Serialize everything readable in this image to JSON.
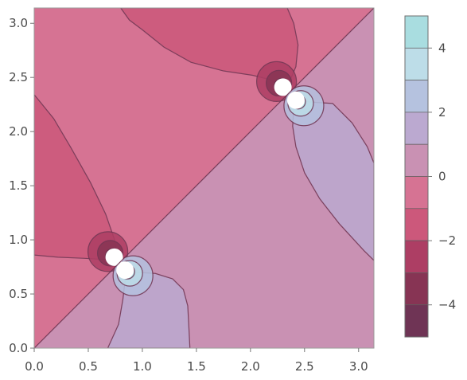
{
  "chart_data": {
    "type": "contour",
    "x_ticks": [
      0.0,
      0.5,
      1.0,
      1.5,
      2.0,
      2.5,
      3.0
    ],
    "y_ticks": [
      0.0,
      0.5,
      1.0,
      1.5,
      2.0,
      2.5,
      3.0
    ],
    "x_tick_labels": [
      "0.0",
      "0.5",
      "1.0",
      "1.5",
      "2.0",
      "2.5",
      "3.0"
    ],
    "y_tick_labels": [
      "0.0",
      "0.5",
      "1.0",
      "1.5",
      "2.0",
      "2.5",
      "3.0"
    ],
    "xlim": [
      0.0,
      3.14159
    ],
    "ylim": [
      0.0,
      3.14159
    ],
    "singularities": [
      {
        "x": 0.74,
        "y": 0.84
      },
      {
        "x": 0.84,
        "y": 0.72
      },
      {
        "x": 2.3,
        "y": 2.41
      },
      {
        "x": 2.42,
        "y": 2.29
      }
    ],
    "contour_levels": [
      -5,
      -4,
      -3,
      -2,
      -1,
      0,
      1,
      2,
      3,
      4,
      5
    ],
    "legend": {
      "range": [
        -5,
        5
      ],
      "ticks": [
        4,
        2,
        0,
        -2,
        -4
      ],
      "tick_labels": [
        "4",
        "2",
        "0",
        "−2",
        "−4"
      ],
      "colors_high_to_low": [
        "#a9dde0",
        "#bddde8",
        "#b5c2df",
        "#bba9d0",
        "#c991b3",
        "#d67393",
        "#cc587b",
        "#ad3e64",
        "#873454",
        "#6f3455"
      ]
    },
    "colors": {
      "level_-5": "#6f3455",
      "level_-4": "#873454",
      "level_-3": "#ad3e64",
      "level_-2": "#cc587b",
      "level_-1": "#d67393",
      "level_0": "#c991b3",
      "level_1": "#bba9d0",
      "level_2": "#b5c2df",
      "level_3": "#bddde8",
      "level_4": "#a9dde0"
    }
  }
}
